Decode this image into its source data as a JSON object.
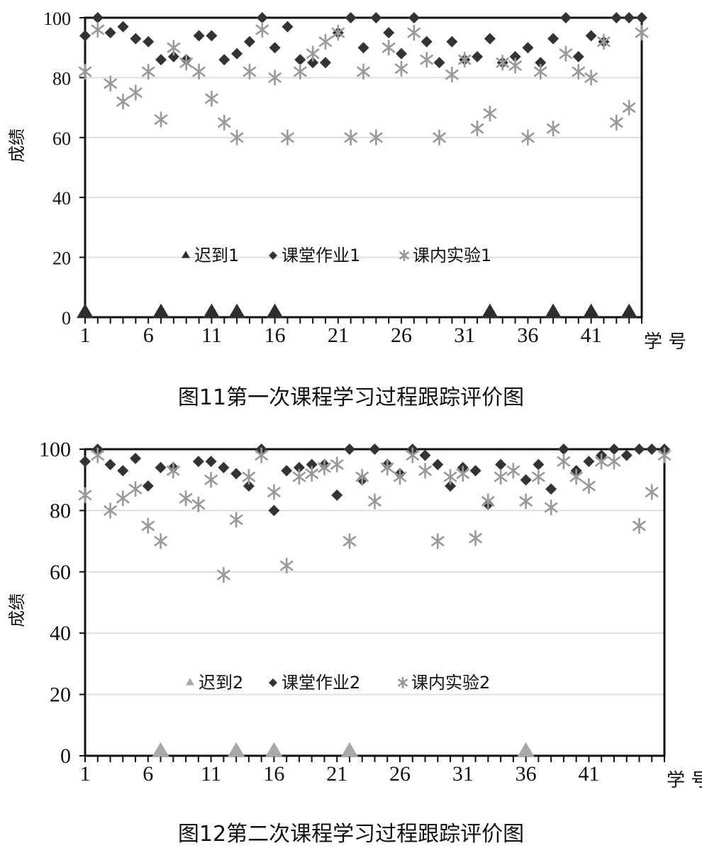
{
  "chart_data": [
    {
      "type": "scatter",
      "title": "图11第一次课程学习过程跟踪评价图",
      "ylabel": "成绩",
      "xlabel": "学 号",
      "xlim": [
        1,
        45
      ],
      "ylim": [
        0,
        100
      ],
      "yticks": [
        0,
        20,
        40,
        60,
        80,
        100
      ],
      "xticks": [
        1,
        6,
        11,
        16,
        21,
        26,
        31,
        36,
        41
      ],
      "grid": true,
      "legend": "center",
      "series": [
        {
          "name": "迟到1",
          "marker": "triangle",
          "color": "#2e2e2e",
          "x": [
            1,
            7,
            11,
            13,
            16,
            33,
            38,
            41,
            44
          ],
          "y": [
            0,
            0,
            0,
            0,
            0,
            0,
            0,
            0,
            0
          ]
        },
        {
          "name": "课堂作业1",
          "marker": "diamond",
          "color": "#333333",
          "x": [
            1,
            2,
            3,
            4,
            5,
            6,
            7,
            8,
            9,
            10,
            11,
            12,
            13,
            14,
            15,
            16,
            17,
            18,
            19,
            20,
            21,
            22,
            23,
            24,
            25,
            26,
            27,
            28,
            29,
            30,
            31,
            32,
            33,
            34,
            35,
            36,
            37,
            38,
            39,
            40,
            41,
            42,
            43,
            44,
            45
          ],
          "y": [
            94,
            100,
            95,
            97,
            93,
            92,
            86,
            87,
            86,
            94,
            94,
            86,
            88,
            92,
            100,
            90,
            97,
            86,
            85,
            85,
            95,
            100,
            90,
            100,
            95,
            88,
            100,
            92,
            85,
            92,
            86,
            87,
            93,
            85,
            87,
            90,
            85,
            93,
            100,
            87,
            94,
            92,
            100,
            100,
            100
          ]
        },
        {
          "name": "课内实验1",
          "marker": "star",
          "color": "#999999",
          "x": [
            1,
            2,
            3,
            4,
            5,
            6,
            7,
            8,
            9,
            10,
            11,
            12,
            13,
            14,
            15,
            16,
            17,
            18,
            19,
            20,
            21,
            22,
            23,
            24,
            25,
            26,
            27,
            28,
            29,
            30,
            31,
            32,
            33,
            34,
            35,
            36,
            37,
            38,
            39,
            40,
            41,
            42,
            43,
            44,
            45
          ],
          "y": [
            82,
            96,
            78,
            72,
            75,
            82,
            66,
            90,
            85,
            82,
            73,
            65,
            60,
            82,
            96,
            80,
            60,
            82,
            88,
            92,
            95,
            60,
            82,
            60,
            90,
            83,
            95,
            86,
            60,
            81,
            86,
            63,
            68,
            85,
            84,
            60,
            82,
            63,
            88,
            82,
            80,
            92,
            65,
            70,
            95
          ]
        }
      ]
    },
    {
      "type": "scatter",
      "title": "图12第二次课程学习过程跟踪评价图",
      "ylabel": "成绩",
      "xlabel": "学 号",
      "xlim": [
        1,
        47
      ],
      "ylim": [
        0,
        100
      ],
      "yticks": [
        0,
        20,
        40,
        60,
        80,
        100
      ],
      "xticks": [
        1,
        6,
        11,
        16,
        21,
        26,
        31,
        36,
        41
      ],
      "grid": true,
      "legend": "center",
      "series": [
        {
          "name": "迟到2",
          "marker": "triangle",
          "color": "#a8a8a8",
          "x": [
            7,
            13,
            16,
            22,
            36
          ],
          "y": [
            0,
            0,
            0,
            0,
            0
          ]
        },
        {
          "name": "课堂作业2",
          "marker": "diamond",
          "color": "#333333",
          "x": [
            1,
            2,
            3,
            4,
            5,
            6,
            7,
            8,
            10,
            11,
            12,
            13,
            14,
            15,
            16,
            17,
            18,
            19,
            20,
            21,
            22,
            23,
            24,
            25,
            26,
            27,
            28,
            29,
            30,
            31,
            32,
            33,
            34,
            36,
            37,
            38,
            39,
            40,
            41,
            42,
            43,
            44,
            45,
            46,
            47
          ],
          "y": [
            96,
            100,
            95,
            93,
            97,
            88,
            94,
            94,
            96,
            96,
            94,
            92,
            88,
            100,
            80,
            93,
            94,
            95,
            95,
            85,
            100,
            90,
            100,
            95,
            92,
            100,
            98,
            95,
            88,
            94,
            93,
            82,
            95,
            90,
            95,
            87,
            100,
            93,
            96,
            98,
            100,
            98,
            100,
            100,
            100
          ]
        },
        {
          "name": "课内实验2",
          "marker": "star",
          "color": "#999999",
          "x": [
            1,
            2,
            3,
            4,
            5,
            6,
            7,
            8,
            9,
            10,
            11,
            12,
            13,
            14,
            15,
            16,
            17,
            18,
            19,
            20,
            21,
            22,
            23,
            24,
            25,
            26,
            27,
            28,
            29,
            30,
            31,
            32,
            33,
            34,
            35,
            36,
            37,
            38,
            39,
            40,
            41,
            42,
            43,
            45,
            46,
            47
          ],
          "y": [
            85,
            98,
            80,
            84,
            87,
            75,
            70,
            93,
            84,
            82,
            90,
            59,
            77,
            91,
            98,
            86,
            62,
            91,
            92,
            94,
            95,
            70,
            91,
            83,
            94,
            91,
            98,
            93,
            70,
            91,
            92,
            71,
            83,
            91,
            93,
            83,
            91,
            81,
            96,
            91,
            88,
            96,
            96,
            75,
            86,
            98
          ]
        }
      ]
    }
  ]
}
